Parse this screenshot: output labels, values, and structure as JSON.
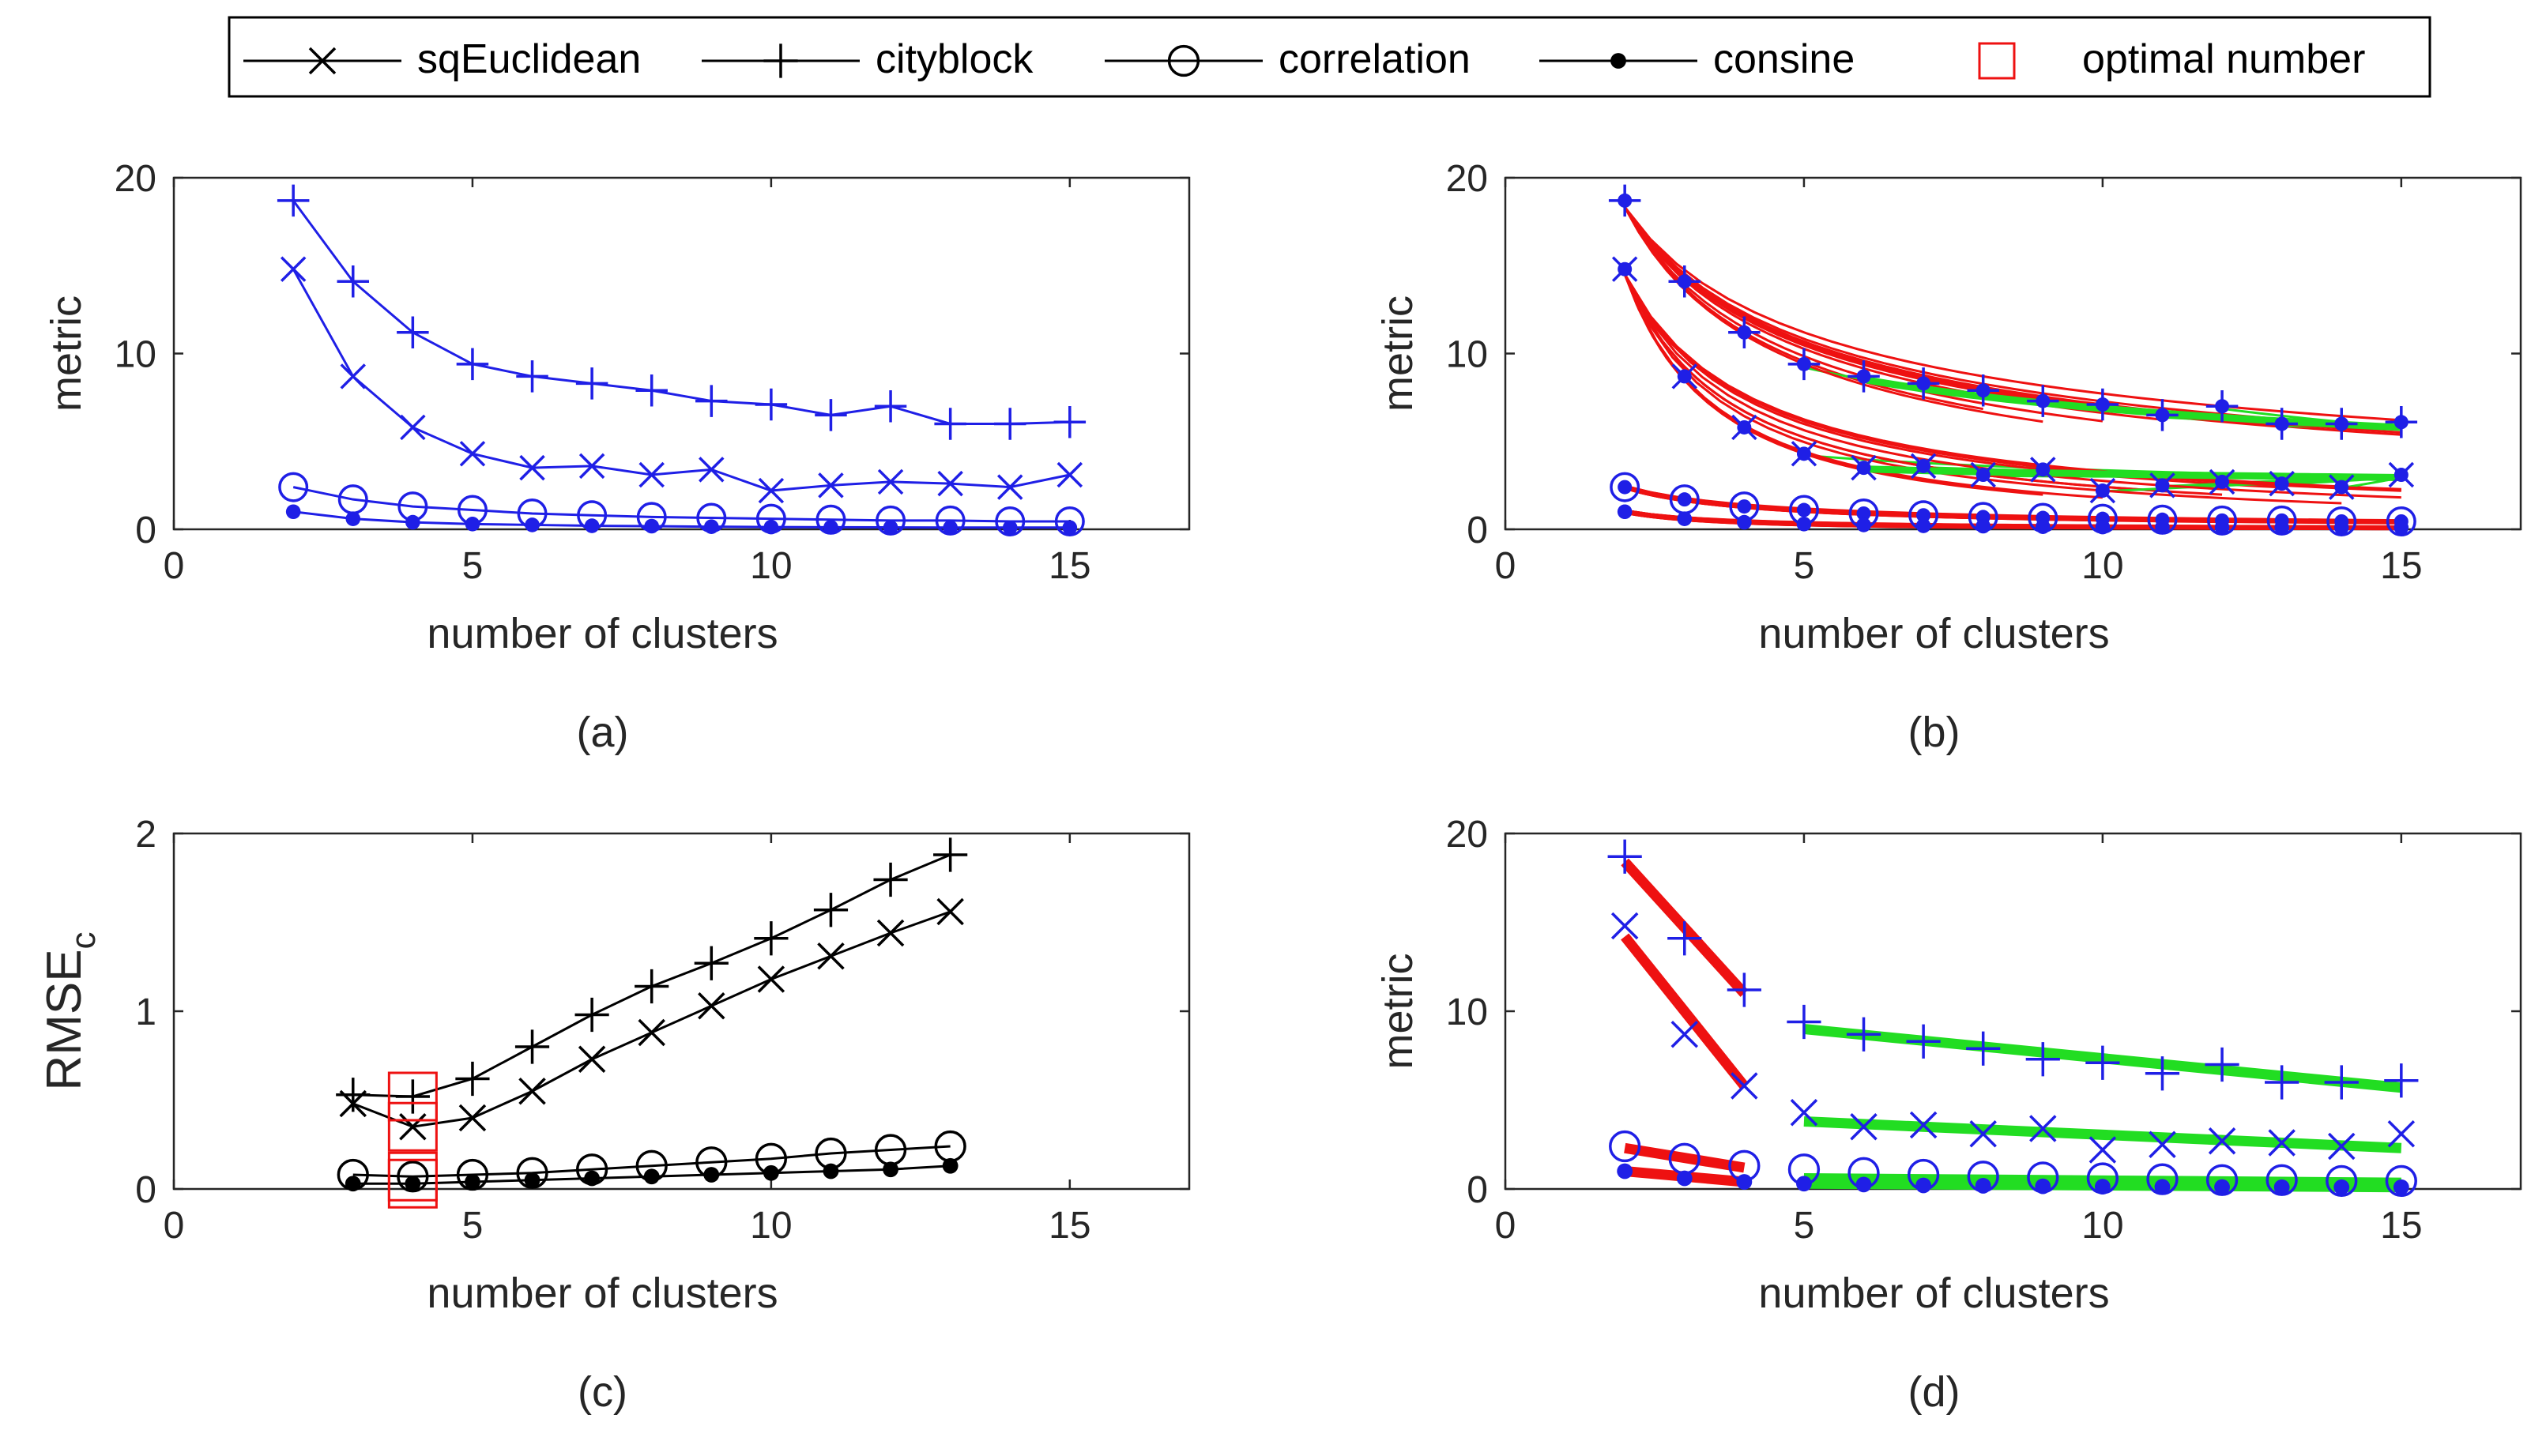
{
  "colors": {
    "blue": "#1f1fe6",
    "black": "#000000",
    "red": "#ee1111",
    "green": "#22dd22",
    "axis": "#262626"
  },
  "legend": {
    "items": [
      {
        "label": "sqEuclidean",
        "marker": "x-icon"
      },
      {
        "label": "cityblock",
        "marker": "plus-icon"
      },
      {
        "label": "correlation",
        "marker": "circle-icon"
      },
      {
        "label": "consine",
        "marker": "dot-icon"
      },
      {
        "label": "optimal number",
        "marker": "square-icon"
      }
    ]
  },
  "chart_data": [
    {
      "id": "a",
      "caption": "(a)",
      "type": "line",
      "xlabel": "number of clusters",
      "ylabel": "metric",
      "xlim": [
        0,
        17
      ],
      "ylim": [
        0,
        20
      ],
      "xticks": [
        0,
        5,
        10,
        15
      ],
      "yticks": [
        0,
        10,
        20
      ],
      "x": [
        2,
        3,
        4,
        5,
        6,
        7,
        8,
        9,
        10,
        11,
        12,
        13,
        14,
        15
      ],
      "series": [
        {
          "name": "sqEuclidean",
          "values": [
            14.8,
            8.7,
            5.8,
            4.3,
            3.5,
            3.6,
            3.1,
            3.4,
            2.2,
            2.5,
            2.7,
            2.6,
            2.4,
            3.1
          ]
        },
        {
          "name": "cityblock",
          "values": [
            18.7,
            14.1,
            11.2,
            9.4,
            8.7,
            8.3,
            7.9,
            7.3,
            7.1,
            6.5,
            7.0,
            6.0,
            6.0,
            6.1
          ]
        },
        {
          "name": "correlation",
          "values": [
            2.4,
            1.7,
            1.3,
            1.1,
            0.9,
            0.8,
            0.7,
            0.65,
            0.6,
            0.55,
            0.5,
            0.5,
            0.45,
            0.45
          ]
        },
        {
          "name": "consine",
          "values": [
            1.0,
            0.6,
            0.4,
            0.3,
            0.25,
            0.2,
            0.18,
            0.15,
            0.13,
            0.12,
            0.11,
            0.1,
            0.1,
            0.1
          ]
        }
      ]
    },
    {
      "id": "b",
      "caption": "(b)",
      "type": "line",
      "xlabel": "number of clusters",
      "ylabel": "metric",
      "xlim": [
        0,
        17
      ],
      "ylim": [
        0,
        20
      ],
      "xticks": [
        0,
        5,
        10,
        15
      ],
      "yticks": [
        0,
        10,
        20
      ],
      "x": [
        2,
        3,
        4,
        5,
        6,
        7,
        8,
        9,
        10,
        11,
        12,
        13,
        14,
        15
      ],
      "series": [
        {
          "name": "sqEuclidean",
          "values": [
            14.8,
            8.7,
            5.8,
            4.3,
            3.5,
            3.6,
            3.1,
            3.4,
            2.2,
            2.5,
            2.7,
            2.6,
            2.4,
            3.1
          ]
        },
        {
          "name": "cityblock",
          "values": [
            18.7,
            14.1,
            11.2,
            9.4,
            8.7,
            8.3,
            7.9,
            7.3,
            7.1,
            6.5,
            7.0,
            6.0,
            6.0,
            6.1
          ]
        },
        {
          "name": "correlation",
          "values": [
            2.4,
            1.7,
            1.3,
            1.1,
            0.9,
            0.8,
            0.7,
            0.65,
            0.6,
            0.55,
            0.5,
            0.5,
            0.45,
            0.45
          ]
        },
        {
          "name": "consine",
          "values": [
            1.0,
            0.6,
            0.4,
            0.3,
            0.25,
            0.2,
            0.18,
            0.15,
            0.13,
            0.12,
            0.11,
            0.1,
            0.1,
            0.1
          ]
        }
      ],
      "fit_curves": "red = candidate power-law fits on left segment, green = fits on right segment, one per split point"
    },
    {
      "id": "c",
      "caption": "(c)",
      "type": "line",
      "xlabel": "number of clusters",
      "ylabel": "RMSE",
      "ylabel_subscript": "c",
      "xlim": [
        0,
        17
      ],
      "ylim": [
        0,
        2
      ],
      "xticks": [
        0,
        5,
        10,
        15
      ],
      "yticks": [
        0,
        1,
        2
      ],
      "x": [
        3,
        4,
        5,
        6,
        7,
        8,
        9,
        10,
        11,
        12,
        13
      ],
      "series": [
        {
          "name": "sqEuclidean",
          "values": [
            0.48,
            0.35,
            0.4,
            0.55,
            0.73,
            0.88,
            1.03,
            1.18,
            1.31,
            1.44,
            1.56
          ]
        },
        {
          "name": "cityblock",
          "values": [
            0.53,
            0.52,
            0.62,
            0.8,
            0.98,
            1.14,
            1.27,
            1.41,
            1.57,
            1.74,
            1.88
          ]
        },
        {
          "name": "correlation",
          "values": [
            0.08,
            0.07,
            0.08,
            0.09,
            0.11,
            0.13,
            0.15,
            0.17,
            0.2,
            0.22,
            0.24
          ]
        },
        {
          "name": "consine",
          "values": [
            0.03,
            0.03,
            0.04,
            0.05,
            0.06,
            0.07,
            0.08,
            0.09,
            0.1,
            0.11,
            0.13
          ]
        }
      ],
      "optimal": [
        {
          "series": "sqEuclidean",
          "x": 4
        },
        {
          "series": "cityblock",
          "x": 4
        },
        {
          "series": "correlation",
          "x": 4
        },
        {
          "series": "consine",
          "x": 4
        }
      ]
    },
    {
      "id": "d",
      "caption": "(d)",
      "type": "scatter",
      "xlabel": "number of clusters",
      "ylabel": "metric",
      "xlim": [
        0,
        17
      ],
      "ylim": [
        0,
        20
      ],
      "xticks": [
        0,
        5,
        10,
        15
      ],
      "yticks": [
        0,
        10,
        20
      ],
      "x": [
        2,
        3,
        4,
        5,
        6,
        7,
        8,
        9,
        10,
        11,
        12,
        13,
        14,
        15
      ],
      "series": [
        {
          "name": "sqEuclidean",
          "values": [
            14.8,
            8.7,
            5.8,
            4.3,
            3.5,
            3.6,
            3.1,
            3.4,
            2.2,
            2.5,
            2.7,
            2.6,
            2.4,
            3.1
          ]
        },
        {
          "name": "cityblock",
          "values": [
            18.7,
            14.1,
            11.2,
            9.4,
            8.7,
            8.3,
            7.9,
            7.3,
            7.1,
            6.5,
            7.0,
            6.0,
            6.0,
            6.1
          ]
        },
        {
          "name": "correlation",
          "values": [
            2.4,
            1.7,
            1.3,
            1.1,
            0.9,
            0.8,
            0.7,
            0.65,
            0.6,
            0.55,
            0.5,
            0.5,
            0.45,
            0.45
          ]
        },
        {
          "name": "consine",
          "values": [
            1.0,
            0.6,
            0.4,
            0.3,
            0.25,
            0.2,
            0.18,
            0.15,
            0.13,
            0.12,
            0.11,
            0.1,
            0.1,
            0.1
          ]
        }
      ],
      "split_x": 4,
      "fits": [
        {
          "series": "cityblock",
          "segment": "left",
          "from": [
            2,
            18.4
          ],
          "to": [
            4,
            11.0
          ]
        },
        {
          "series": "sqEuclidean",
          "segment": "left",
          "from": [
            2,
            14.2
          ],
          "to": [
            4,
            5.8
          ]
        },
        {
          "series": "correlation",
          "segment": "left",
          "from": [
            2,
            2.3
          ],
          "to": [
            4,
            1.2
          ]
        },
        {
          "series": "consine",
          "segment": "left",
          "from": [
            2,
            1.0
          ],
          "to": [
            4,
            0.4
          ]
        },
        {
          "series": "cityblock",
          "segment": "right",
          "from": [
            5,
            9.0
          ],
          "to": [
            15,
            5.7
          ]
        },
        {
          "series": "sqEuclidean",
          "segment": "right",
          "from": [
            5,
            3.8
          ],
          "to": [
            15,
            2.3
          ]
        },
        {
          "series": "correlation",
          "segment": "right",
          "from": [
            5,
            0.6
          ],
          "to": [
            15,
            0.35
          ]
        },
        {
          "series": "consine",
          "segment": "right",
          "from": [
            5,
            0.3
          ],
          "to": [
            15,
            0.1
          ]
        }
      ]
    }
  ]
}
